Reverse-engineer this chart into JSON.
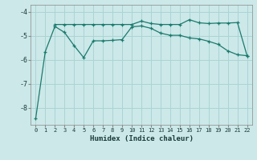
{
  "xlabel": "Humidex (Indice chaleur)",
  "bg_color": "#cce8e8",
  "grid_color": "#aad4d4",
  "line_color": "#1a7a6e",
  "xlim": [
    -0.5,
    22.5
  ],
  "ylim": [
    -8.7,
    -3.7
  ],
  "yticks": [
    -8,
    -7,
    -6,
    -5,
    -4
  ],
  "xticks": [
    0,
    1,
    2,
    3,
    4,
    5,
    6,
    7,
    8,
    9,
    10,
    11,
    12,
    13,
    14,
    15,
    16,
    17,
    18,
    19,
    20,
    21,
    22
  ],
  "line1_x": [
    0,
    1,
    2,
    3,
    4,
    5,
    6,
    7,
    8,
    9,
    10,
    11,
    12,
    13,
    14,
    15,
    16,
    17,
    18,
    19,
    20,
    21,
    22
  ],
  "line1_y": [
    -8.45,
    -5.65,
    -4.6,
    -4.85,
    -5.4,
    -5.9,
    -5.2,
    -5.2,
    -5.18,
    -5.15,
    -4.62,
    -4.58,
    -4.68,
    -4.88,
    -4.97,
    -4.97,
    -5.08,
    -5.12,
    -5.22,
    -5.35,
    -5.62,
    -5.78,
    -5.82
  ],
  "line2_x": [
    2,
    3,
    4,
    5,
    6,
    7,
    8,
    9,
    10,
    11,
    12,
    13,
    14,
    15,
    16,
    17,
    18,
    19,
    20,
    21,
    22
  ],
  "line2_y": [
    -4.52,
    -4.52,
    -4.52,
    -4.52,
    -4.52,
    -4.52,
    -4.52,
    -4.52,
    -4.52,
    -4.38,
    -4.48,
    -4.52,
    -4.52,
    -4.52,
    -4.32,
    -4.45,
    -4.48,
    -4.46,
    -4.46,
    -4.44,
    -5.82
  ]
}
